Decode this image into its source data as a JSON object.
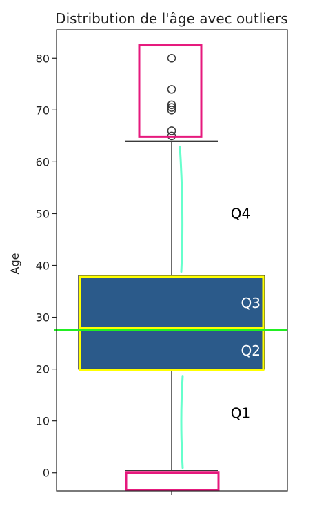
{
  "chart_data": {
    "type": "box",
    "title": "Distribution de l'âge avec outliers",
    "xlabel": "",
    "ylabel": "Age",
    "ylim": [
      -3.5,
      85.5
    ],
    "yticks": [
      0,
      10,
      20,
      30,
      40,
      50,
      60,
      70,
      80
    ],
    "grid": false,
    "box": {
      "whisker_low": 0.4,
      "q1": 20,
      "median": 28,
      "q3": 38,
      "whisker_high": 64,
      "outliers": [
        65,
        66,
        70,
        70.5,
        71,
        74,
        80
      ],
      "color": "#2b5a8a",
      "edge_color": "#3a3a3a"
    },
    "annotations": {
      "median_line_value": 27.5,
      "median_line_color": "#22ee22",
      "quartile_boxes": [
        {
          "low": 19.8,
          "high": 27.5,
          "label": "Q2",
          "label_color": "#ffffff"
        },
        {
          "low": 28,
          "high": 37.8,
          "label": "Q3",
          "label_color": "#ffffff"
        }
      ],
      "quartile_box_color": "#ffff00",
      "quartile_labels": [
        {
          "text": "Q4",
          "y": 50
        },
        {
          "text": "Q1",
          "y": 11.5
        }
      ],
      "highlight_boxes": [
        {
          "low": 64.8,
          "high": 82.5
        },
        {
          "low": -3.3,
          "high": 0
        }
      ],
      "highlight_color": "#e6197d",
      "whisker_highlight_color": "#66ffcc"
    }
  }
}
